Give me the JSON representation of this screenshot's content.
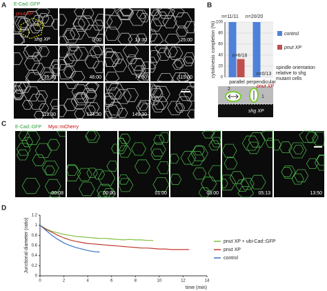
{
  "panel_a": {
    "letter": "A",
    "stain": "E-Cad::GFP",
    "genotype": "pnut XP",
    "mutant": "shg XP",
    "cells": [
      "1",
      "2"
    ],
    "times": [
      "0:00",
      "19:30",
      "25:00",
      "35:30",
      "46:00",
      "74:30",
      "115:00",
      "119:30",
      "134:30",
      "149:30"
    ]
  },
  "panel_b": {
    "letter": "B",
    "diagram": {
      "cells": [
        "2",
        "1"
      ],
      "genotype": "pnut XP",
      "mutant": "shg XP"
    }
  },
  "panel_c": {
    "letter": "C",
    "stains": [
      "E-Cad::GFP",
      "Myo::mCherry"
    ],
    "times": [
      "-00:08",
      "00:00",
      "01:00",
      "03:00",
      "05:13",
      "13:50"
    ]
  },
  "panel_d": {
    "letter": "D"
  },
  "chart_data": [
    {
      "type": "bar",
      "ylabel": "cytokinesis completion (%)",
      "xlabel": [
        "spindle orientation",
        "relative to shg",
        "mutant cells"
      ],
      "categories": [
        "parallel",
        "perpendicular"
      ],
      "series": [
        {
          "name": "control",
          "color": "#4f81d9",
          "values": [
            100,
            100
          ]
        },
        {
          "name": "pnut XP",
          "color": "#c0504d",
          "values": [
            33,
            0
          ]
        }
      ],
      "counts": [
        [
          "n=11/11",
          "n=6/18"
        ],
        [
          "n=20/20",
          "n=0/13"
        ]
      ],
      "ylim": [
        0,
        100
      ],
      "yticks": [
        0,
        20,
        40,
        60,
        80,
        100
      ]
    },
    {
      "type": "line",
      "xlabel": "time (min)",
      "ylabel": "Junctional diameter (ratio)",
      "x": [
        0,
        0.5,
        1,
        1.5,
        2,
        2.5,
        3,
        3.5,
        4,
        4.5,
        5,
        5.5,
        6,
        6.5,
        7,
        7.5,
        8,
        8.5,
        9,
        9.5,
        10,
        10.5,
        11,
        11.5,
        12,
        12.5
      ],
      "series": [
        {
          "name": "pnut XP + ubi-Cad::GFP",
          "color": "#7fbf3f",
          "values": [
            1.0,
            0.93,
            0.88,
            0.85,
            0.82,
            0.8,
            0.78,
            0.77,
            0.76,
            0.75,
            0.74,
            0.74,
            0.73,
            0.72,
            0.71,
            0.72,
            0.71,
            0.71,
            0.7,
            0.7,
            null,
            null,
            null,
            null,
            null,
            null
          ]
        },
        {
          "name": "pnut XP",
          "color": "#c0392b",
          "values": [
            1.0,
            0.92,
            0.86,
            0.8,
            0.75,
            0.71,
            0.68,
            0.66,
            0.64,
            0.63,
            0.62,
            0.61,
            0.6,
            0.59,
            0.58,
            0.57,
            0.56,
            0.55,
            0.55,
            0.54,
            0.53,
            0.53,
            0.52,
            0.52,
            0.52,
            0.52
          ]
        },
        {
          "name": "control",
          "color": "#3a6fc4",
          "values": [
            1.0,
            0.9,
            0.8,
            0.72,
            0.65,
            0.6,
            0.56,
            0.53,
            0.5,
            0.48,
            0.47,
            null,
            null,
            null,
            null,
            null,
            null,
            null,
            null,
            null,
            null,
            null,
            null,
            null,
            null,
            null
          ]
        }
      ],
      "xlim": [
        0,
        14
      ],
      "xticks": [
        0,
        2,
        4,
        6,
        8,
        10,
        12,
        14
      ],
      "ylim": [
        0,
        1.2
      ],
      "yticks": [
        0,
        0.2,
        0.4,
        0.6,
        0.8,
        1,
        1.2
      ]
    }
  ]
}
